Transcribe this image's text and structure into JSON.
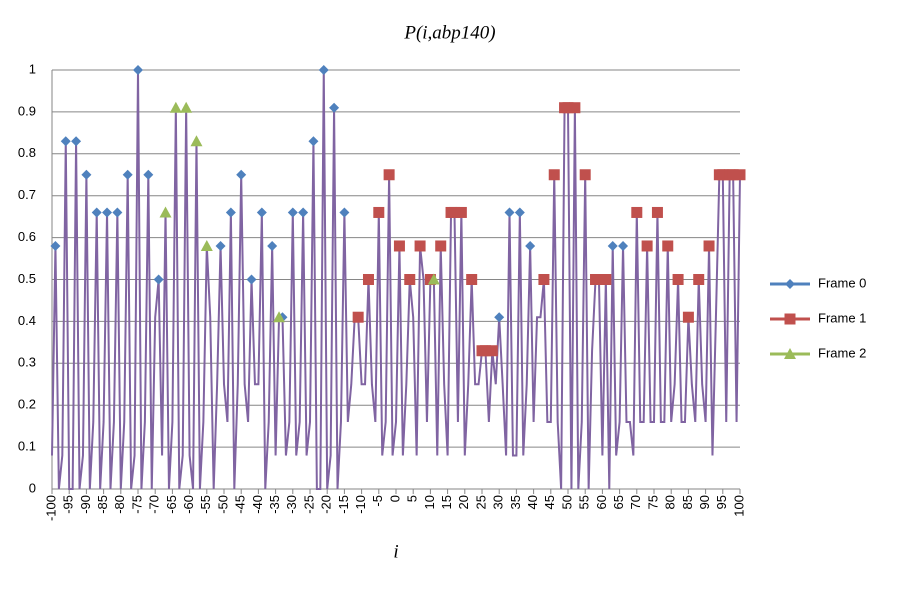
{
  "chart_data": {
    "type": "line",
    "title": "P(i,abp140)",
    "x_label": "i",
    "xlim": [
      -100,
      100
    ],
    "ylim": [
      0,
      1
    ],
    "xticks": [
      -100,
      -95,
      -90,
      -85,
      -80,
      -75,
      -70,
      -65,
      -60,
      -55,
      -50,
      -45,
      -40,
      -35,
      -30,
      -25,
      -20,
      -15,
      -10,
      -5,
      0,
      5,
      10,
      15,
      20,
      25,
      30,
      35,
      40,
      45,
      50,
      55,
      60,
      65,
      70,
      75,
      80,
      85,
      90,
      95,
      100
    ],
    "yticks": [
      0,
      0.1,
      0.2,
      0.3,
      0.4,
      0.5,
      0.6,
      0.7,
      0.8,
      0.9,
      1
    ],
    "grid": true,
    "legend": "right",
    "series": [
      {
        "color": "#8064a2",
        "x": [
          -100,
          -99,
          -98,
          -97,
          -96,
          -95,
          -94,
          -93,
          -92,
          -91,
          -90,
          -89,
          -88,
          -87,
          -86,
          -85,
          -84,
          -83,
          -82,
          -81,
          -80,
          -79,
          -78,
          -77,
          -76,
          -75,
          -74,
          -73,
          -72,
          -71,
          -70,
          -69,
          -68,
          -67,
          -66,
          -65,
          -64,
          -63,
          -62,
          -61,
          -60,
          -59,
          -58,
          -57,
          -56,
          -55,
          -54,
          -53,
          -52,
          -51,
          -50,
          -49,
          -48,
          -47,
          -46,
          -45,
          -44,
          -43,
          -42,
          -41,
          -40,
          -39,
          -38,
          -37,
          -36,
          -35,
          -34,
          -33,
          -32,
          -31,
          -30,
          -29,
          -28,
          -27,
          -26,
          -25,
          -24,
          -23,
          -22,
          -21,
          -20,
          -19,
          -18,
          -17,
          -16,
          -15,
          -14,
          -13,
          -12,
          -11,
          -10,
          -9,
          -8,
          -7,
          -6,
          -5,
          -4,
          -3,
          -2,
          -1,
          0,
          1,
          2,
          3,
          4,
          5,
          6,
          7,
          8,
          9,
          10,
          11,
          12,
          13,
          14,
          15,
          16,
          17,
          18,
          19,
          20,
          21,
          22,
          23,
          24,
          25,
          26,
          27,
          28,
          29,
          30,
          31,
          32,
          33,
          34,
          35,
          36,
          37,
          38,
          39,
          40,
          41,
          42,
          43,
          44,
          45,
          46,
          47,
          48,
          49,
          50,
          51,
          52,
          53,
          54,
          55,
          56,
          57,
          58,
          59,
          60,
          61,
          62,
          63,
          64,
          65,
          66,
          67,
          68,
          69,
          70,
          71,
          72,
          73,
          74,
          75,
          76,
          77,
          78,
          79,
          80,
          81,
          82,
          83,
          84,
          85,
          86,
          87,
          88,
          89,
          90,
          91,
          92,
          93,
          94,
          95,
          96,
          97,
          98,
          99,
          100
        ],
        "values": [
          0.08,
          0.58,
          0,
          0.08,
          0.83,
          0,
          0,
          0.83,
          0,
          0.08,
          0.75,
          0,
          0.16,
          0.66,
          0,
          0.16,
          0.66,
          0,
          0.16,
          0.66,
          0,
          0.16,
          0.75,
          0,
          0.08,
          1,
          0,
          0.16,
          0.75,
          0,
          0.41,
          0.5,
          0.08,
          0.66,
          0,
          0.16,
          0.91,
          0,
          0.08,
          0.91,
          0.08,
          0,
          0.83,
          0,
          0.16,
          0.58,
          0.41,
          0,
          0.25,
          0.58,
          0.25,
          0.16,
          0.66,
          0,
          0.25,
          0.75,
          0.25,
          0.16,
          0.5,
          0.25,
          0.25,
          0.66,
          0,
          0.16,
          0.58,
          0.08,
          0.41,
          0.41,
          0.08,
          0.16,
          0.66,
          0.08,
          0.16,
          0.66,
          0.08,
          0.16,
          0.83,
          0,
          0,
          1,
          0,
          0.08,
          0.91,
          0,
          0.16,
          0.66,
          0.16,
          0.25,
          0.41,
          0.41,
          0.25,
          0.25,
          0.5,
          0.25,
          0.16,
          0.66,
          0.08,
          0.16,
          0.75,
          0.08,
          0.16,
          0.58,
          0.08,
          0.25,
          0.5,
          0.41,
          0.08,
          0.58,
          0.5,
          0.16,
          0.5,
          0.5,
          0.08,
          0.58,
          0.25,
          0.08,
          0.66,
          0.66,
          0.16,
          0.66,
          0.08,
          0.25,
          0.5,
          0.25,
          0.25,
          0.33,
          0.33,
          0.16,
          0.33,
          0.25,
          0.41,
          0.25,
          0.08,
          0.66,
          0.08,
          0.08,
          0.66,
          0.08,
          0.25,
          0.58,
          0.16,
          0.41,
          0.41,
          0.5,
          0.16,
          0.16,
          0.75,
          0.16,
          0,
          0.91,
          0.91,
          0,
          0.91,
          0,
          0.16,
          0.75,
          0,
          0.33,
          0.5,
          0.5,
          0.08,
          0.5,
          0,
          0.58,
          0.08,
          0.16,
          0.58,
          0.16,
          0.16,
          0.08,
          0.66,
          0.16,
          0.16,
          0.58,
          0.16,
          0.16,
          0.66,
          0.16,
          0.16,
          0.58,
          0.16,
          0.25,
          0.5,
          0.16,
          0.16,
          0.41,
          0.25,
          0.16,
          0.5,
          0.25,
          0.16,
          0.58,
          0.08,
          0.41,
          0.75,
          0.75,
          0.16,
          0.75,
          0.75,
          0.16,
          0.75
        ]
      },
      {
        "name": "Frame 0",
        "color": "#4f81bd",
        "marker": "diamond",
        "x": [
          -99,
          -96,
          -93,
          -90,
          -87,
          -84,
          -81,
          -78,
          -75,
          -72,
          -69,
          -51,
          -48,
          -45,
          -42,
          -39,
          -36,
          -33,
          -30,
          -27,
          -24,
          -21,
          -18,
          -15,
          30,
          33,
          36,
          39,
          63,
          66
        ],
        "values": [
          0.58,
          0.83,
          0.83,
          0.75,
          0.66,
          0.66,
          0.66,
          0.75,
          1,
          0.75,
          0.5,
          0.58,
          0.66,
          0.75,
          0.5,
          0.66,
          0.58,
          0.41,
          0.66,
          0.66,
          0.83,
          1,
          0.91,
          0.66,
          0.41,
          0.66,
          0.66,
          0.58,
          0.58,
          0.58
        ]
      },
      {
        "name": "Frame 1",
        "color": "#c0504d",
        "marker": "square",
        "x": [
          -11,
          -8,
          -5,
          -2,
          1,
          4,
          7,
          10,
          13,
          16,
          17,
          19,
          22,
          25,
          26,
          28,
          43,
          46,
          49,
          50,
          52,
          55,
          58,
          59,
          61,
          70,
          73,
          76,
          79,
          82,
          85,
          88,
          91,
          94,
          95,
          97,
          98,
          100
        ],
        "values": [
          0.41,
          0.5,
          0.66,
          0.75,
          0.58,
          0.5,
          0.58,
          0.5,
          0.58,
          0.66,
          0.66,
          0.66,
          0.5,
          0.33,
          0.33,
          0.33,
          0.5,
          0.75,
          0.91,
          0.91,
          0.91,
          0.75,
          0.5,
          0.5,
          0.5,
          0.66,
          0.58,
          0.66,
          0.58,
          0.5,
          0.41,
          0.5,
          0.58,
          0.75,
          0.75,
          0.75,
          0.75,
          0.75
        ]
      },
      {
        "name": "Frame 2",
        "color": "#9bbb59",
        "marker": "triangle",
        "x": [
          -67,
          -64,
          -61,
          -58,
          -55,
          -34,
          11
        ],
        "values": [
          0.66,
          0.91,
          0.91,
          0.83,
          0.58,
          0.41,
          0.5
        ]
      }
    ]
  }
}
